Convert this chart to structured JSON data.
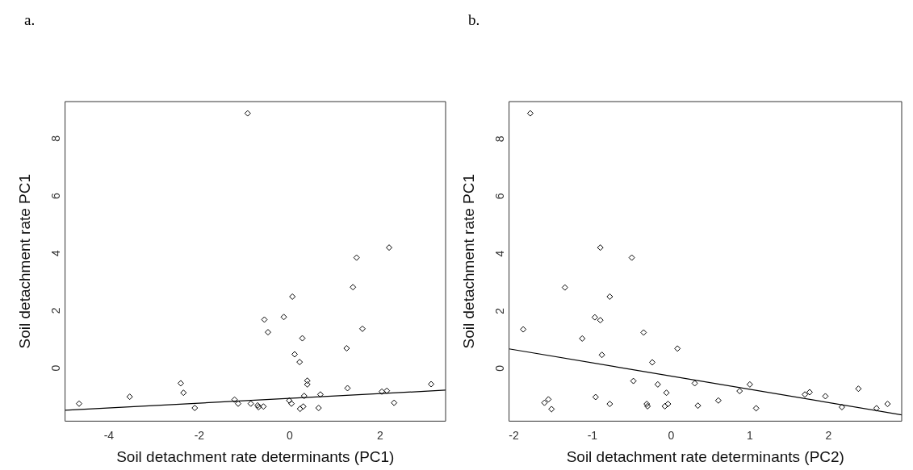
{
  "chart_data": [
    {
      "type": "scatter",
      "title": "a.",
      "xlabel": "Soil detachment rate determinants (PC1)",
      "ylabel": "Soil detachment rate PC1",
      "xlim": [
        -4.97,
        3.45
      ],
      "ylim": [
        -1.96,
        9.18
      ],
      "xticks": [
        -4,
        -2,
        0,
        2
      ],
      "yticks": [
        0,
        2,
        4,
        6,
        8
      ],
      "grid": false,
      "legend": false,
      "series": [
        {
          "type": "scatter",
          "marker": "diamond",
          "color": "#000000",
          "x": [
            -4.66,
            -3.54,
            -2.41,
            -2.35,
            -2.1,
            -1.22,
            -1.14,
            -0.93,
            -0.86,
            -0.71,
            -0.69,
            -0.58,
            -0.56,
            -0.48,
            -0.13,
            -0.01,
            0.04,
            0.06,
            0.11,
            0.22,
            0.23,
            0.28,
            0.3,
            0.32,
            0.39,
            0.39,
            0.64,
            0.68,
            1.26,
            1.28,
            1.4,
            1.48,
            1.61,
            2.04,
            2.15,
            2.2,
            2.31,
            3.13
          ],
          "values": [
            -1.35,
            -1.11,
            -0.64,
            -0.97,
            -1.5,
            -1.21,
            -1.35,
            8.77,
            -1.35,
            -1.41,
            -1.47,
            -1.45,
            1.58,
            1.14,
            1.67,
            -1.24,
            -1.35,
            2.38,
            0.37,
            0.1,
            -1.53,
            0.93,
            -1.45,
            -1.08,
            -0.55,
            -0.68,
            -1.5,
            -1.03,
            0.58,
            -0.81,
            2.71,
            3.74,
            1.26,
            -0.93,
            -0.9,
            4.09,
            -1.32,
            -0.67
          ]
        },
        {
          "type": "line",
          "color": "#000000",
          "x": [
            -4.97,
            3.45
          ],
          "values": [
            -1.58,
            -0.88
          ]
        }
      ]
    },
    {
      "type": "scatter",
      "title": "b.",
      "xlabel": "Soil detachment rate determinants (PC2)",
      "ylabel": "Soil detachment rate PC1",
      "xlim": [
        -2.06,
        2.93
      ],
      "ylim": [
        -1.95,
        9.19
      ],
      "xticks": [
        -2,
        -1,
        0,
        1,
        2
      ],
      "yticks": [
        0,
        2,
        4,
        6,
        8
      ],
      "grid": false,
      "legend": false,
      "series": [
        {
          "type": "scatter",
          "marker": "diamond",
          "color": "#000000",
          "x": [
            -1.79,
            -1.88,
            -1.61,
            -1.56,
            -1.52,
            -1.35,
            -1.13,
            -0.97,
            -0.96,
            -0.9,
            -0.9,
            -0.88,
            -0.78,
            -0.78,
            -0.5,
            -0.48,
            -0.35,
            -0.31,
            -0.3,
            -0.24,
            -0.17,
            -0.08,
            -0.06,
            -0.04,
            0.08,
            0.3,
            0.34,
            0.6,
            0.87,
            1.0,
            1.08,
            1.7,
            1.76,
            1.96,
            2.17,
            2.38,
            2.61,
            2.75
          ],
          "values": [
            8.78,
            1.25,
            -1.31,
            -1.19,
            -1.53,
            2.71,
            0.93,
            1.67,
            -1.11,
            4.1,
            1.57,
            0.36,
            2.39,
            -1.35,
            3.75,
            -0.55,
            1.14,
            -1.35,
            -1.43,
            0.1,
            -0.67,
            -1.43,
            -0.96,
            -1.35,
            0.58,
            -0.63,
            -1.41,
            -1.23,
            -0.9,
            -0.67,
            -1.5,
            -1.02,
            -0.94,
            -1.08,
            -1.46,
            -0.82,
            -1.5,
            -1.35
          ]
        },
        {
          "type": "line",
          "color": "#000000",
          "x": [
            -2.06,
            2.93
          ],
          "values": [
            0.57,
            -1.73
          ]
        }
      ]
    }
  ]
}
